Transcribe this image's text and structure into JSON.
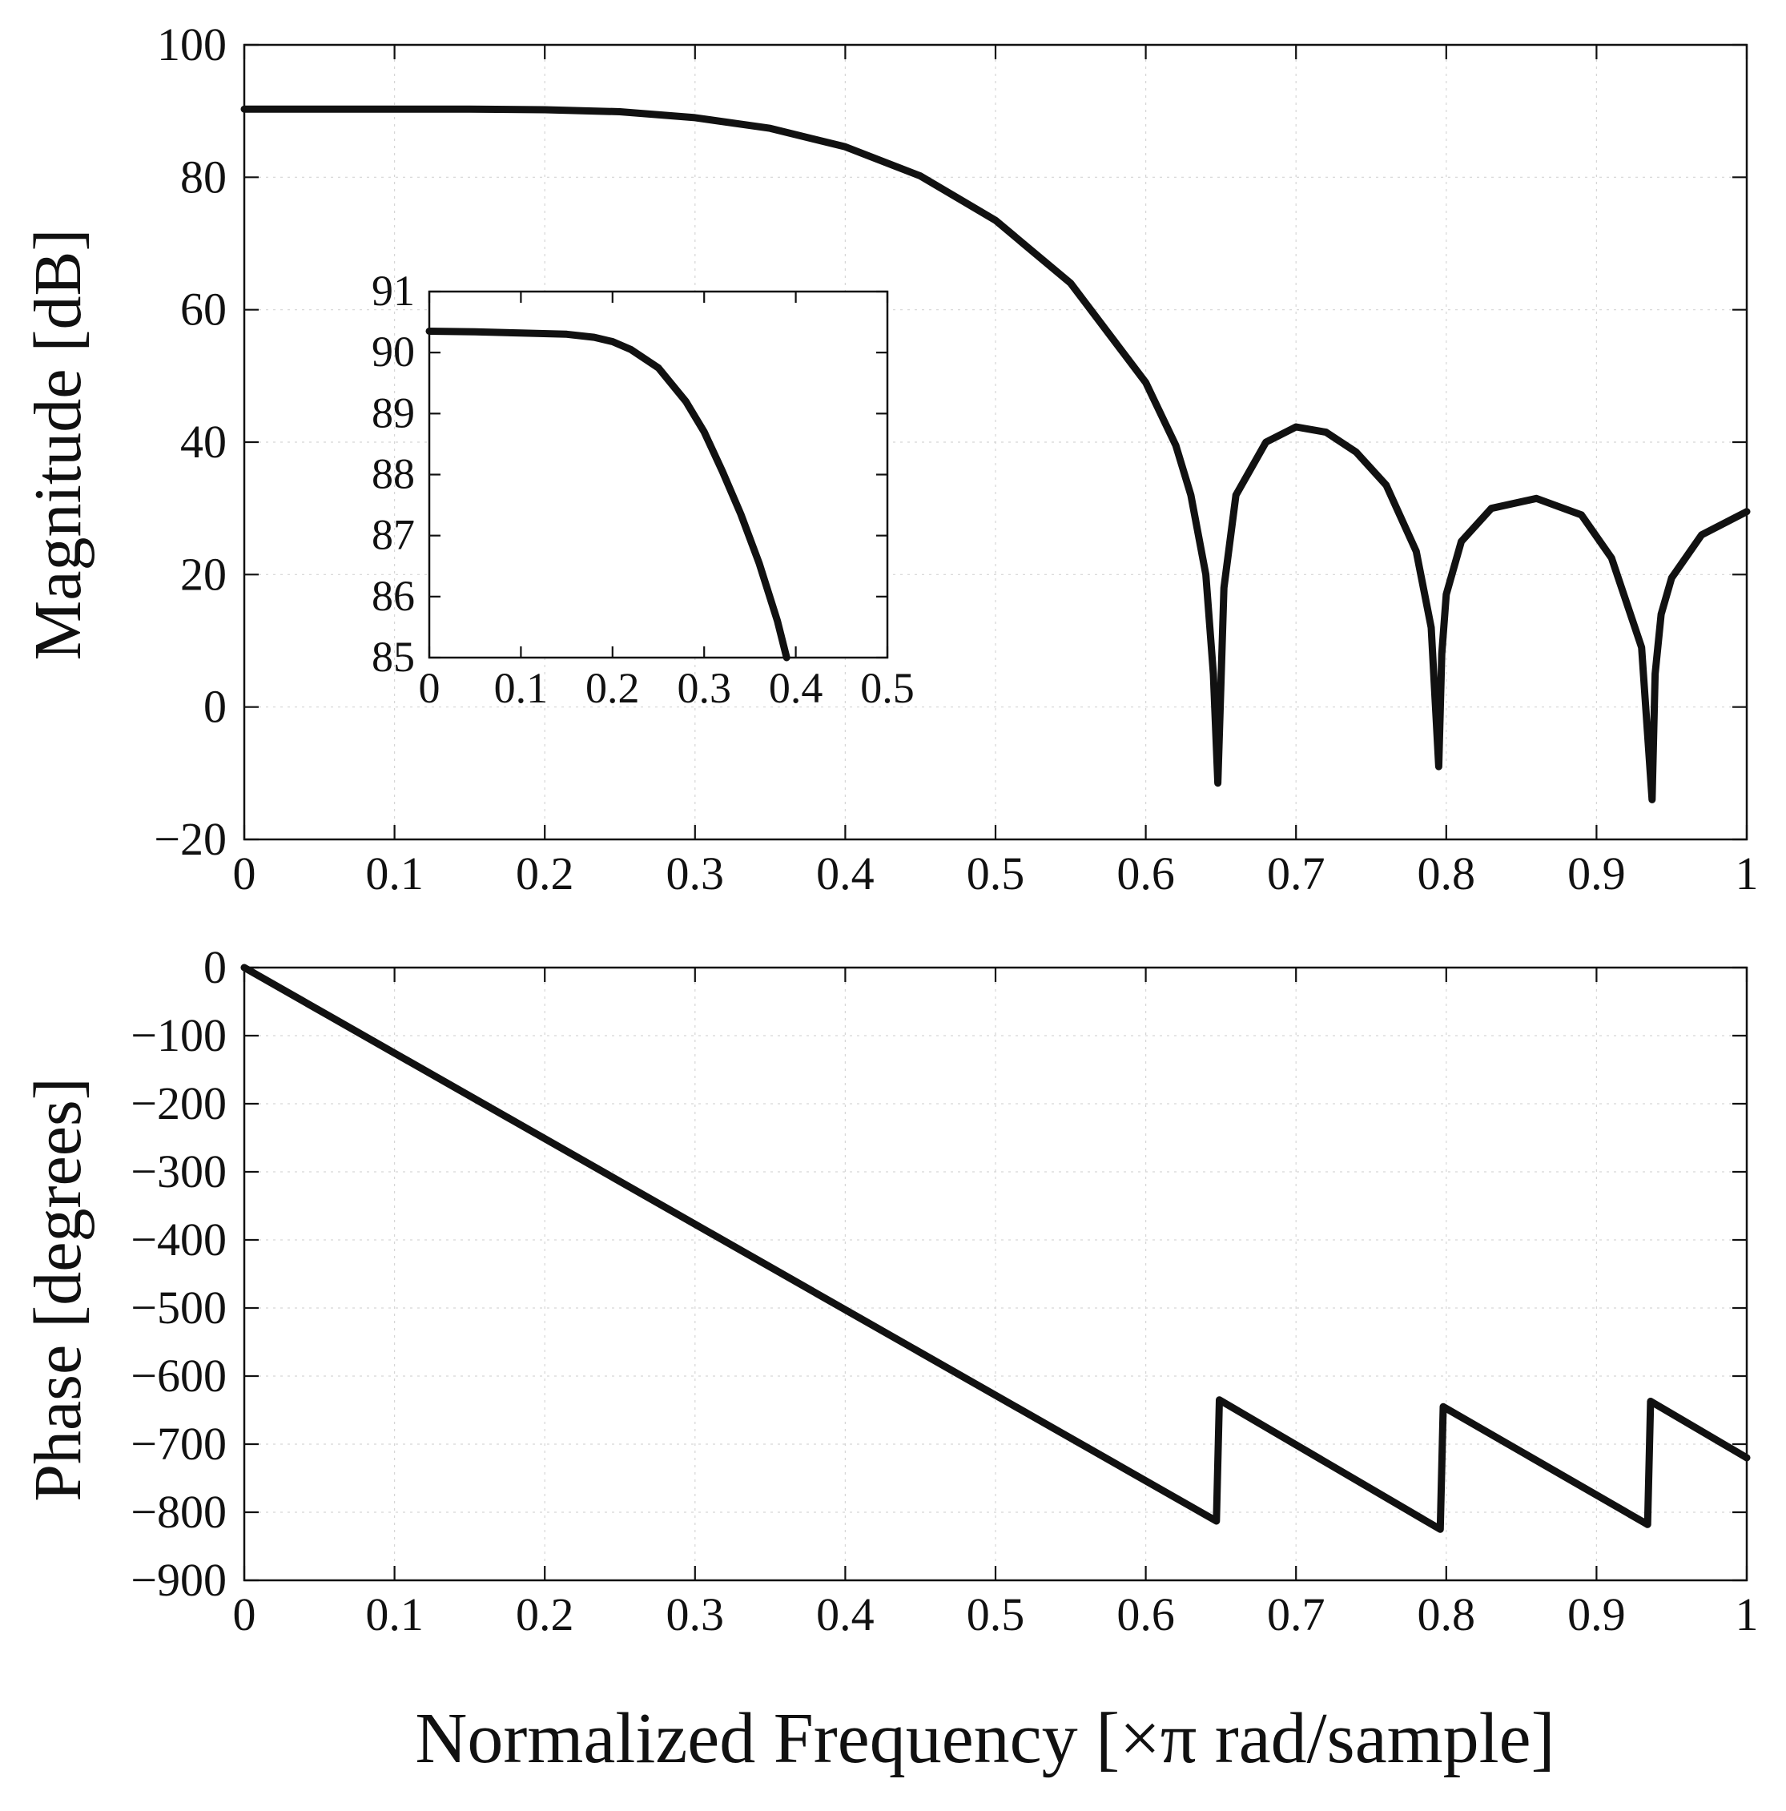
{
  "figure": {
    "xlabel": "Normalized Frequency [×π rad/sample]"
  },
  "chart_data": [
    {
      "id": "magnitude",
      "type": "line",
      "title": "",
      "xlabel": "",
      "ylabel": "Magnitude [dB]",
      "xlim": [
        0,
        1
      ],
      "ylim": [
        -20,
        100
      ],
      "xticks": [
        0,
        0.1,
        0.2,
        0.3,
        0.4,
        0.5,
        0.6,
        0.7,
        0.8,
        0.9,
        1
      ],
      "xtick_labels": [
        "0",
        "0.1",
        "0.2",
        "0.3",
        "0.4",
        "0.5",
        "0.6",
        "0.7",
        "0.8",
        "0.9",
        "1"
      ],
      "yticks": [
        -20,
        0,
        20,
        40,
        60,
        80,
        100
      ],
      "ytick_labels": [
        "−20",
        "0",
        "20",
        "40",
        "60",
        "80",
        "100"
      ],
      "grid": true,
      "color": "#111111",
      "x": [
        0,
        0.05,
        0.1,
        0.15,
        0.2,
        0.25,
        0.3,
        0.35,
        0.4,
        0.45,
        0.5,
        0.55,
        0.6,
        0.62,
        0.63,
        0.64,
        0.645,
        0.648,
        0.652,
        0.66,
        0.68,
        0.7,
        0.72,
        0.74,
        0.76,
        0.78,
        0.79,
        0.795,
        0.797,
        0.8,
        0.81,
        0.83,
        0.86,
        0.89,
        0.91,
        0.93,
        0.937,
        0.939,
        0.943,
        0.95,
        0.97,
        1.0
      ],
      "y": [
        90.3,
        90.3,
        90.3,
        90.3,
        90.2,
        89.9,
        89.0,
        87.4,
        84.6,
        80.2,
        73.5,
        64.0,
        49.0,
        39.5,
        32.0,
        20.0,
        5.0,
        -11.5,
        18.0,
        32.0,
        40.0,
        42.3,
        41.5,
        38.5,
        33.5,
        23.5,
        12.0,
        -9.0,
        8.0,
        17.0,
        25.0,
        30.0,
        31.5,
        29.0,
        22.5,
        9.0,
        -14.0,
        5.0,
        14.0,
        19.5,
        26.0,
        29.5
      ]
    },
    {
      "id": "magnitude-inset",
      "type": "line",
      "title": "",
      "xlabel": "",
      "ylabel": "",
      "xlim": [
        0,
        0.5
      ],
      "ylim": [
        85,
        91
      ],
      "xticks": [
        0,
        0.1,
        0.2,
        0.3,
        0.4,
        0.5
      ],
      "xtick_labels": [
        "0",
        "0.1",
        "0.2",
        "0.3",
        "0.4",
        "0.5"
      ],
      "yticks": [
        85,
        86,
        87,
        88,
        89,
        90,
        91
      ],
      "ytick_labels": [
        "85",
        "86",
        "87",
        "88",
        "89",
        "90",
        "91"
      ],
      "grid": false,
      "color": "#111111",
      "x": [
        0,
        0.05,
        0.1,
        0.15,
        0.18,
        0.2,
        0.22,
        0.25,
        0.28,
        0.3,
        0.32,
        0.34,
        0.36,
        0.38,
        0.39
      ],
      "y": [
        90.35,
        90.34,
        90.32,
        90.3,
        90.25,
        90.18,
        90.05,
        89.75,
        89.2,
        88.7,
        88.05,
        87.35,
        86.55,
        85.6,
        85.0
      ]
    },
    {
      "id": "phase",
      "type": "line",
      "title": "",
      "xlabel": "",
      "ylabel": "Phase [degrees]",
      "xlim": [
        0,
        1
      ],
      "ylim": [
        -900,
        0
      ],
      "xticks": [
        0,
        0.1,
        0.2,
        0.3,
        0.4,
        0.5,
        0.6,
        0.7,
        0.8,
        0.9,
        1
      ],
      "xtick_labels": [
        "0",
        "0.1",
        "0.2",
        "0.3",
        "0.4",
        "0.5",
        "0.6",
        "0.7",
        "0.8",
        "0.9",
        "1"
      ],
      "yticks": [
        -900,
        -800,
        -700,
        -600,
        -500,
        -400,
        -300,
        -200,
        -100,
        0
      ],
      "ytick_labels": [
        "−900",
        "−800",
        "−700",
        "−600",
        "−500",
        "−400",
        "−300",
        "−200",
        "−100",
        "0"
      ],
      "grid": true,
      "color": "#111111",
      "x": [
        0,
        0.647,
        0.649,
        0.796,
        0.798,
        0.934,
        0.936,
        1.0
      ],
      "y": [
        0,
        -813,
        -635,
        -825,
        -645,
        -818,
        -637,
        -720
      ]
    }
  ]
}
